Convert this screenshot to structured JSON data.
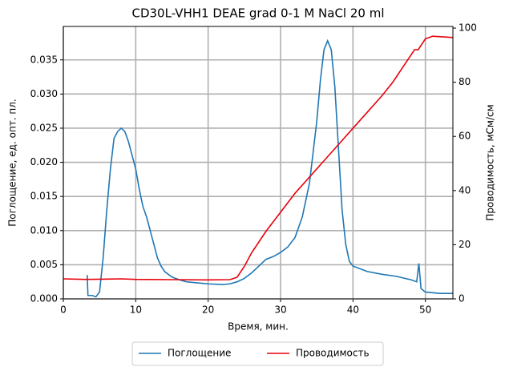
{
  "chart_data": {
    "type": "line",
    "title": "CD30L-VHH1 DEAE grad 0-1 M NaCl 20 ml",
    "x_label": "Время, мин.",
    "y_label": "Поглощение, ед. опт. пл.",
    "y2_label": "Проводимость, мСм/см",
    "xlim": [
      0,
      53.8
    ],
    "xticks": [
      0,
      10,
      20,
      30,
      40,
      50
    ],
    "ylim": [
      0,
      0.0399
    ],
    "yticks": [
      {
        "value": 0,
        "label": "0.000"
      },
      {
        "value": 0.005,
        "label": "0.005"
      },
      {
        "value": 0.01,
        "label": "0.010"
      },
      {
        "value": 0.015,
        "label": "0.015"
      },
      {
        "value": 0.02,
        "label": "0.020"
      },
      {
        "value": 0.025,
        "label": "0.025"
      },
      {
        "value": 0.03,
        "label": "0.030"
      },
      {
        "value": 0.035,
        "label": "0.035"
      }
    ],
    "y2lim": [
      0,
      100.6
    ],
    "y2ticks": [
      0,
      20,
      40,
      60,
      80,
      100
    ],
    "grid": true,
    "legend": "bottom",
    "series": [
      {
        "name": "Поглощение",
        "color": "#1f77b4",
        "x": [
          3.3,
          3.4,
          4,
          4.5,
          5,
          5.5,
          6,
          6.5,
          7,
          7.5,
          8,
          8.5,
          9,
          9.5,
          10,
          10.5,
          11,
          11.5,
          12,
          12.5,
          13,
          13.5,
          14,
          15,
          16,
          17,
          18,
          20,
          22,
          23,
          24,
          25,
          26,
          27,
          28,
          29,
          30,
          31,
          32,
          33,
          34,
          35,
          35.5,
          36,
          36.5,
          37,
          37.5,
          38,
          38.5,
          39,
          39.5,
          40,
          42,
          44,
          46,
          48,
          48.8,
          49.1,
          49.4,
          50,
          52,
          53.8
        ],
        "values": [
          0.0035,
          0.0005,
          0.0005,
          0.0003,
          0.001,
          0.006,
          0.013,
          0.019,
          0.0235,
          0.0245,
          0.025,
          0.0245,
          0.023,
          0.021,
          0.019,
          0.016,
          0.0135,
          0.012,
          0.01,
          0.008,
          0.006,
          0.0048,
          0.004,
          0.0032,
          0.0028,
          0.0025,
          0.0024,
          0.0022,
          0.0021,
          0.0022,
          0.0025,
          0.003,
          0.0038,
          0.0048,
          0.0058,
          0.0062,
          0.0068,
          0.0076,
          0.009,
          0.012,
          0.017,
          0.026,
          0.032,
          0.0365,
          0.0378,
          0.0365,
          0.031,
          0.022,
          0.013,
          0.008,
          0.0055,
          0.0048,
          0.004,
          0.0036,
          0.0033,
          0.0028,
          0.0025,
          0.0052,
          0.0015,
          0.001,
          0.0008,
          0.0008
        ]
      },
      {
        "name": "Проводимость",
        "color": "#e8000b",
        "axis": "y2",
        "x": [
          0,
          3,
          6,
          8,
          10,
          15,
          20,
          23,
          24,
          25,
          26,
          28,
          30,
          32,
          34,
          36,
          38,
          40,
          42,
          44,
          45.5,
          47,
          48.5,
          49,
          50,
          51,
          53.8
        ],
        "values": [
          7.4,
          7.2,
          7.3,
          7.4,
          7.2,
          7.1,
          7,
          7.1,
          8,
          12,
          17,
          25,
          32,
          39,
          45,
          51,
          57,
          63,
          69,
          75,
          80,
          86,
          92,
          92,
          96,
          97,
          96.5
        ]
      }
    ]
  }
}
